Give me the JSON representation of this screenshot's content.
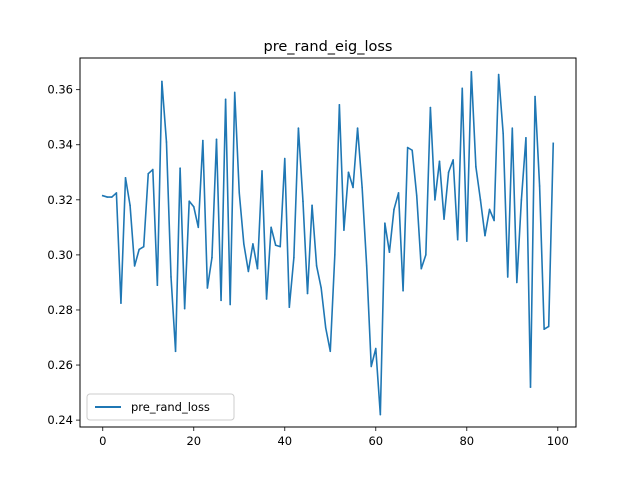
{
  "chart_data": {
    "type": "line",
    "title": "pre_rand_eig_loss",
    "xlabel": "",
    "ylabel": "",
    "xlim": [
      -5,
      104
    ],
    "ylim": [
      0.2375,
      0.3715
    ],
    "xticks": [
      0,
      20,
      40,
      60,
      80,
      100
    ],
    "yticks": [
      0.24,
      0.26,
      0.28,
      0.3,
      0.32,
      0.34,
      0.36
    ],
    "ytick_labels": [
      "0.24",
      "0.26",
      "0.28",
      "0.30",
      "0.32",
      "0.34",
      "0.36"
    ],
    "grid": false,
    "legend_position": "lower-left",
    "series": [
      {
        "name": "pre_rand_loss",
        "color": "#1f77b4",
        "x": [
          0,
          1,
          2,
          3,
          4,
          5,
          6,
          7,
          8,
          9,
          10,
          11,
          12,
          13,
          14,
          15,
          16,
          17,
          18,
          19,
          20,
          21,
          22,
          23,
          24,
          25,
          26,
          27,
          28,
          29,
          30,
          31,
          32,
          33,
          34,
          35,
          36,
          37,
          38,
          39,
          40,
          41,
          42,
          43,
          44,
          45,
          46,
          47,
          48,
          49,
          50,
          51,
          52,
          53,
          54,
          55,
          56,
          57,
          58,
          59,
          60,
          61,
          62,
          63,
          64,
          65,
          66,
          67,
          68,
          69,
          70,
          71,
          72,
          73,
          74,
          75,
          76,
          77,
          78,
          79,
          80,
          81,
          82,
          83,
          84,
          85,
          86,
          87,
          88,
          89,
          90,
          91,
          92,
          93,
          94,
          95,
          96,
          97,
          98,
          99
        ],
        "values": [
          0.3215,
          0.321,
          0.321,
          0.3225,
          0.2825,
          0.328,
          0.318,
          0.296,
          0.302,
          0.303,
          0.3295,
          0.331,
          0.289,
          0.363,
          0.341,
          0.292,
          0.265,
          0.3315,
          0.2805,
          0.3195,
          0.3175,
          0.31,
          0.3415,
          0.288,
          0.299,
          0.342,
          0.2835,
          0.3565,
          0.282,
          0.359,
          0.3225,
          0.304,
          0.294,
          0.304,
          0.295,
          0.3305,
          0.284,
          0.31,
          0.3035,
          0.303,
          0.335,
          0.281,
          0.299,
          0.346,
          0.3195,
          0.286,
          0.318,
          0.296,
          0.288,
          0.2735,
          0.265,
          0.3,
          0.3545,
          0.309,
          0.33,
          0.3245,
          0.346,
          0.3245,
          0.296,
          0.2595,
          0.266,
          0.242,
          0.3115,
          0.301,
          0.3165,
          0.3225,
          0.287,
          0.339,
          0.338,
          0.3215,
          0.295,
          0.3,
          0.3535,
          0.32,
          0.334,
          0.313,
          0.33,
          0.3345,
          0.3055,
          0.3605,
          0.305,
          0.3665,
          0.332,
          0.32,
          0.307,
          0.3165,
          0.3125,
          0.3655,
          0.344,
          0.292,
          0.346,
          0.29,
          0.32,
          0.3425,
          0.252,
          0.3575,
          0.325,
          0.273,
          0.274,
          0.3405
        ]
      }
    ]
  }
}
